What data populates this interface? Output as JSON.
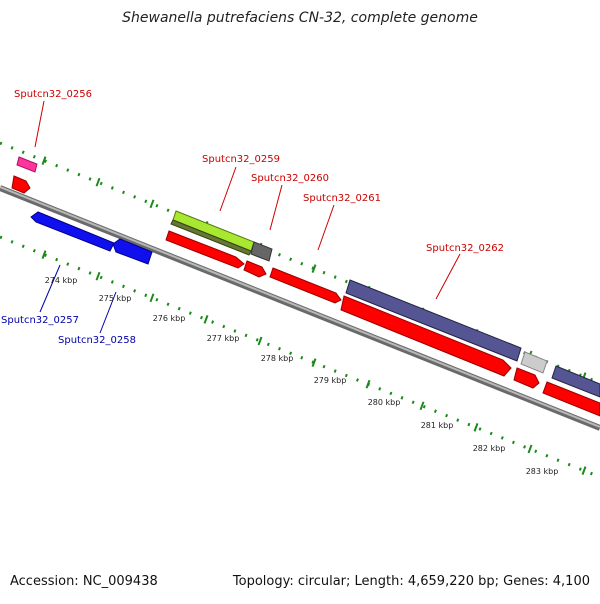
{
  "title": "Shewanella putrefaciens CN-32, complete genome",
  "footer": {
    "accession": "Accession: NC_009438",
    "summary": "Topology: circular; Length: 4,659,220 bp; Genes: 4,100"
  },
  "colors": {
    "forward_cds": "#ff0000",
    "reverse_cds": "#0000ff",
    "forward_label": "#cc0000",
    "reverse_label": "#0000aa",
    "tick_marks": "#1a8a1a",
    "backbone": "#808080",
    "magenta_feature": "#ff3399",
    "lime_feature": "#99dd22",
    "dark_gray_feature": "#666666",
    "light_gray_feature": "#cccccc",
    "slate_feature": "#555588"
  },
  "scale_labels": [
    "274 kbp",
    "275 kbp",
    "276 kbp",
    "277 kbp",
    "278 kbp",
    "279 kbp",
    "280 kbp",
    "281 kbp",
    "282 kbp",
    "283 kbp"
  ],
  "gene_labels": {
    "forward": [
      "Sputcn32_0256",
      "Sputcn32_0259",
      "Sputcn32_0260",
      "Sputcn32_0261",
      "Sputcn32_0262"
    ],
    "reverse": [
      "Sputcn32_0257",
      "Sputcn32_0258"
    ]
  }
}
